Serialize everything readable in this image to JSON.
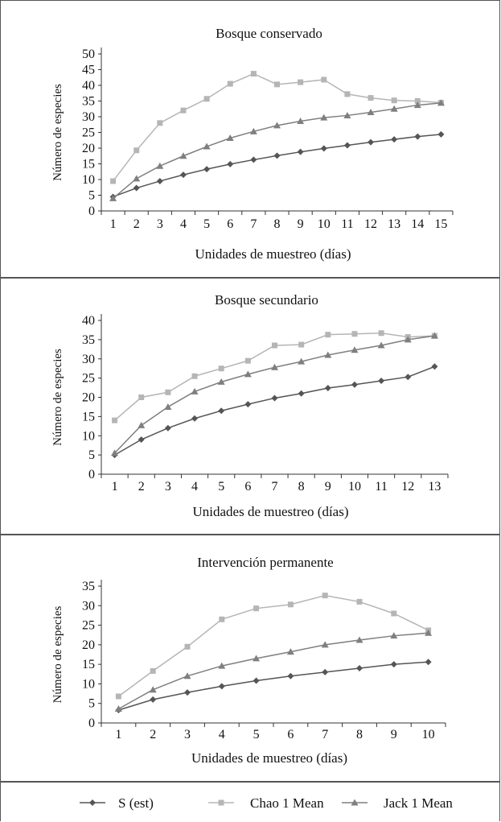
{
  "chart_data": [
    {
      "type": "line",
      "title": "Bosque conservado",
      "xlabel": "Unidades de muestreo (días)",
      "ylabel": "Número de especies",
      "x": [
        1,
        2,
        3,
        4,
        5,
        6,
        7,
        8,
        9,
        10,
        11,
        12,
        13,
        14,
        15
      ],
      "ylim": [
        0,
        50
      ],
      "yticks": [
        0,
        5,
        10,
        15,
        20,
        25,
        30,
        35,
        40,
        45,
        50
      ],
      "series": [
        {
          "name": "S (est)",
          "values": [
            4.5,
            7.3,
            9.5,
            11.5,
            13.3,
            14.9,
            16.3,
            17.6,
            18.8,
            19.9,
            20.9,
            21.9,
            22.8,
            23.7,
            24.4
          ]
        },
        {
          "name": "Chao 1 Mean",
          "values": [
            9.5,
            19.3,
            28.0,
            32.0,
            35.7,
            40.5,
            43.7,
            40.3,
            41.0,
            41.8,
            37.2,
            36.0,
            35.2,
            35.0,
            34.5
          ]
        },
        {
          "name": "Jack 1 Mean",
          "values": [
            4.0,
            10.3,
            14.3,
            17.5,
            20.5,
            23.2,
            25.3,
            27.2,
            28.6,
            29.7,
            30.4,
            31.4,
            32.5,
            33.7,
            34.4
          ]
        }
      ]
    },
    {
      "type": "line",
      "title": "Bosque secundario",
      "xlabel": "Unidades de muestreo (días)",
      "ylabel": "Número de especies",
      "x": [
        1,
        2,
        3,
        4,
        5,
        6,
        7,
        8,
        9,
        10,
        11,
        12,
        13
      ],
      "ylim": [
        0,
        40
      ],
      "yticks": [
        0,
        5,
        10,
        15,
        20,
        25,
        30,
        35,
        40
      ],
      "series": [
        {
          "name": "S (est)",
          "values": [
            5.0,
            9.0,
            12.0,
            14.5,
            16.5,
            18.2,
            19.8,
            21.0,
            22.4,
            23.3,
            24.3,
            25.3,
            28.0
          ]
        },
        {
          "name": "Chao 1 Mean",
          "values": [
            14.0,
            20.0,
            21.3,
            25.5,
            27.5,
            29.5,
            33.5,
            33.7,
            36.3,
            36.5,
            36.7,
            35.7,
            36.0
          ]
        },
        {
          "name": "Jack 1 Mean",
          "values": [
            5.5,
            12.7,
            17.5,
            21.5,
            24.0,
            26.0,
            27.8,
            29.3,
            31.0,
            32.3,
            33.5,
            35.0,
            36.0
          ]
        }
      ]
    },
    {
      "type": "line",
      "title": "Intervención permanente",
      "xlabel": "Unidades de muestreo (días)",
      "ylabel": "Número de especies",
      "x": [
        1,
        2,
        3,
        4,
        5,
        6,
        7,
        8,
        9,
        10
      ],
      "ylim": [
        0,
        35
      ],
      "yticks": [
        0,
        5,
        10,
        15,
        20,
        25,
        30,
        35
      ],
      "series": [
        {
          "name": "S (est)",
          "values": [
            3.3,
            6.0,
            7.8,
            9.4,
            10.8,
            12.0,
            13.0,
            14.0,
            15.0,
            15.6
          ]
        },
        {
          "name": "Chao 1 Mean",
          "values": [
            6.8,
            13.3,
            19.5,
            26.5,
            29.3,
            30.3,
            32.6,
            31.0,
            28.0,
            23.7
          ]
        },
        {
          "name": "Jack 1 Mean",
          "values": [
            3.6,
            8.5,
            12.0,
            14.6,
            16.5,
            18.2,
            20.0,
            21.2,
            22.3,
            23.0
          ]
        }
      ]
    }
  ],
  "legend": {
    "items": [
      {
        "label": "S (est)",
        "marker": "diamond",
        "color": "#555555"
      },
      {
        "label": "Chao 1 Mean",
        "marker": "square",
        "color": "#b5b5b5"
      },
      {
        "label": "Jack 1 Mean",
        "marker": "triangle",
        "color": "#7f7f7f"
      }
    ]
  },
  "colors": {
    "S (est)": "#555555",
    "Chao 1 Mean": "#b5b5b5",
    "Jack 1 Mean": "#7f7f7f",
    "axis": "#333333"
  }
}
